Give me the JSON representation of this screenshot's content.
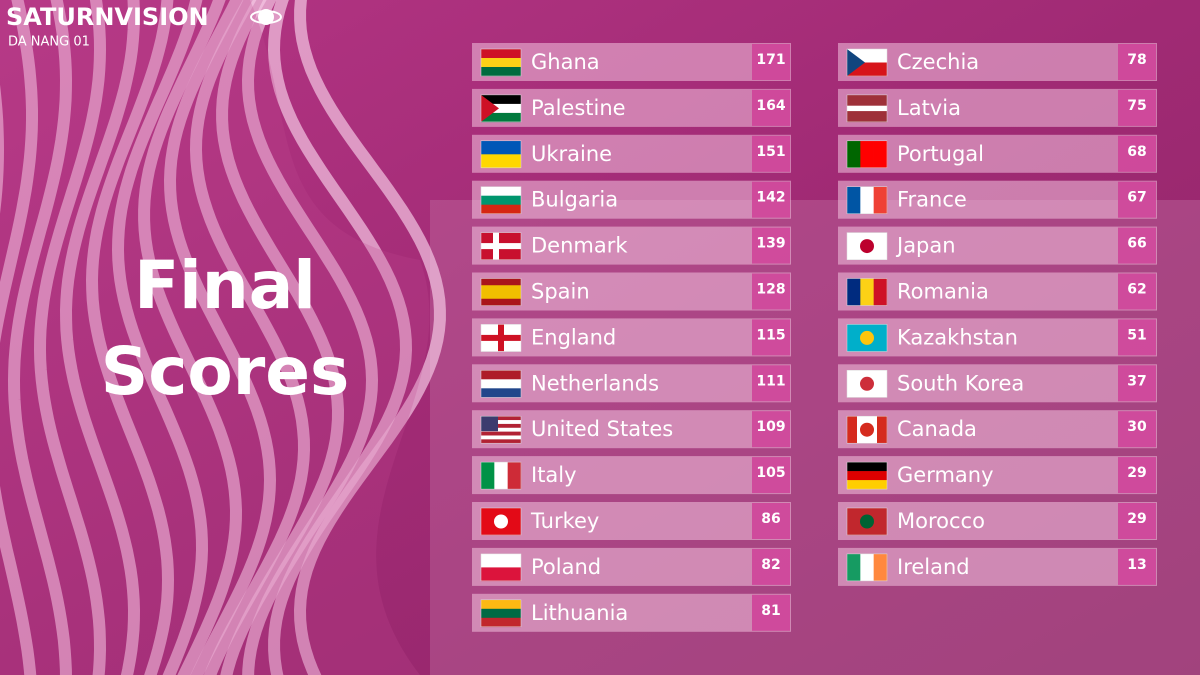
{
  "header": {
    "brand": "SATURNVISION",
    "subtitle": "DA NANG 01"
  },
  "title_lines": [
    "Final",
    "Scores"
  ],
  "scores": [
    {
      "country": "Ghana",
      "points": 171
    },
    {
      "country": "Palestine",
      "points": 164
    },
    {
      "country": "Ukraine",
      "points": 151
    },
    {
      "country": "Bulgaria",
      "points": 142
    },
    {
      "country": "Denmark",
      "points": 139
    },
    {
      "country": "Spain",
      "points": 128
    },
    {
      "country": "England",
      "points": 115
    },
    {
      "country": "Netherlands",
      "points": 111
    },
    {
      "country": "United States",
      "points": 109
    },
    {
      "country": "Italy",
      "points": 105
    },
    {
      "country": "Turkey",
      "points": 86
    },
    {
      "country": "Poland",
      "points": 82
    },
    {
      "country": "Lithuania",
      "points": 81
    },
    {
      "country": "Czechia",
      "points": 78
    },
    {
      "country": "Latvia",
      "points": 75
    },
    {
      "country": "Portugal",
      "points": 68
    },
    {
      "country": "France",
      "points": 67
    },
    {
      "country": "Japan",
      "points": 66
    },
    {
      "country": "Romania",
      "points": 62
    },
    {
      "country": "Kazakhstan",
      "points": 51
    },
    {
      "country": "South Korea",
      "points": 37
    },
    {
      "country": "Canada",
      "points": 30
    },
    {
      "country": "Germany",
      "points": 29
    },
    {
      "country": "Morocco",
      "points": 29
    },
    {
      "country": "Ireland",
      "points": 13
    }
  ]
}
